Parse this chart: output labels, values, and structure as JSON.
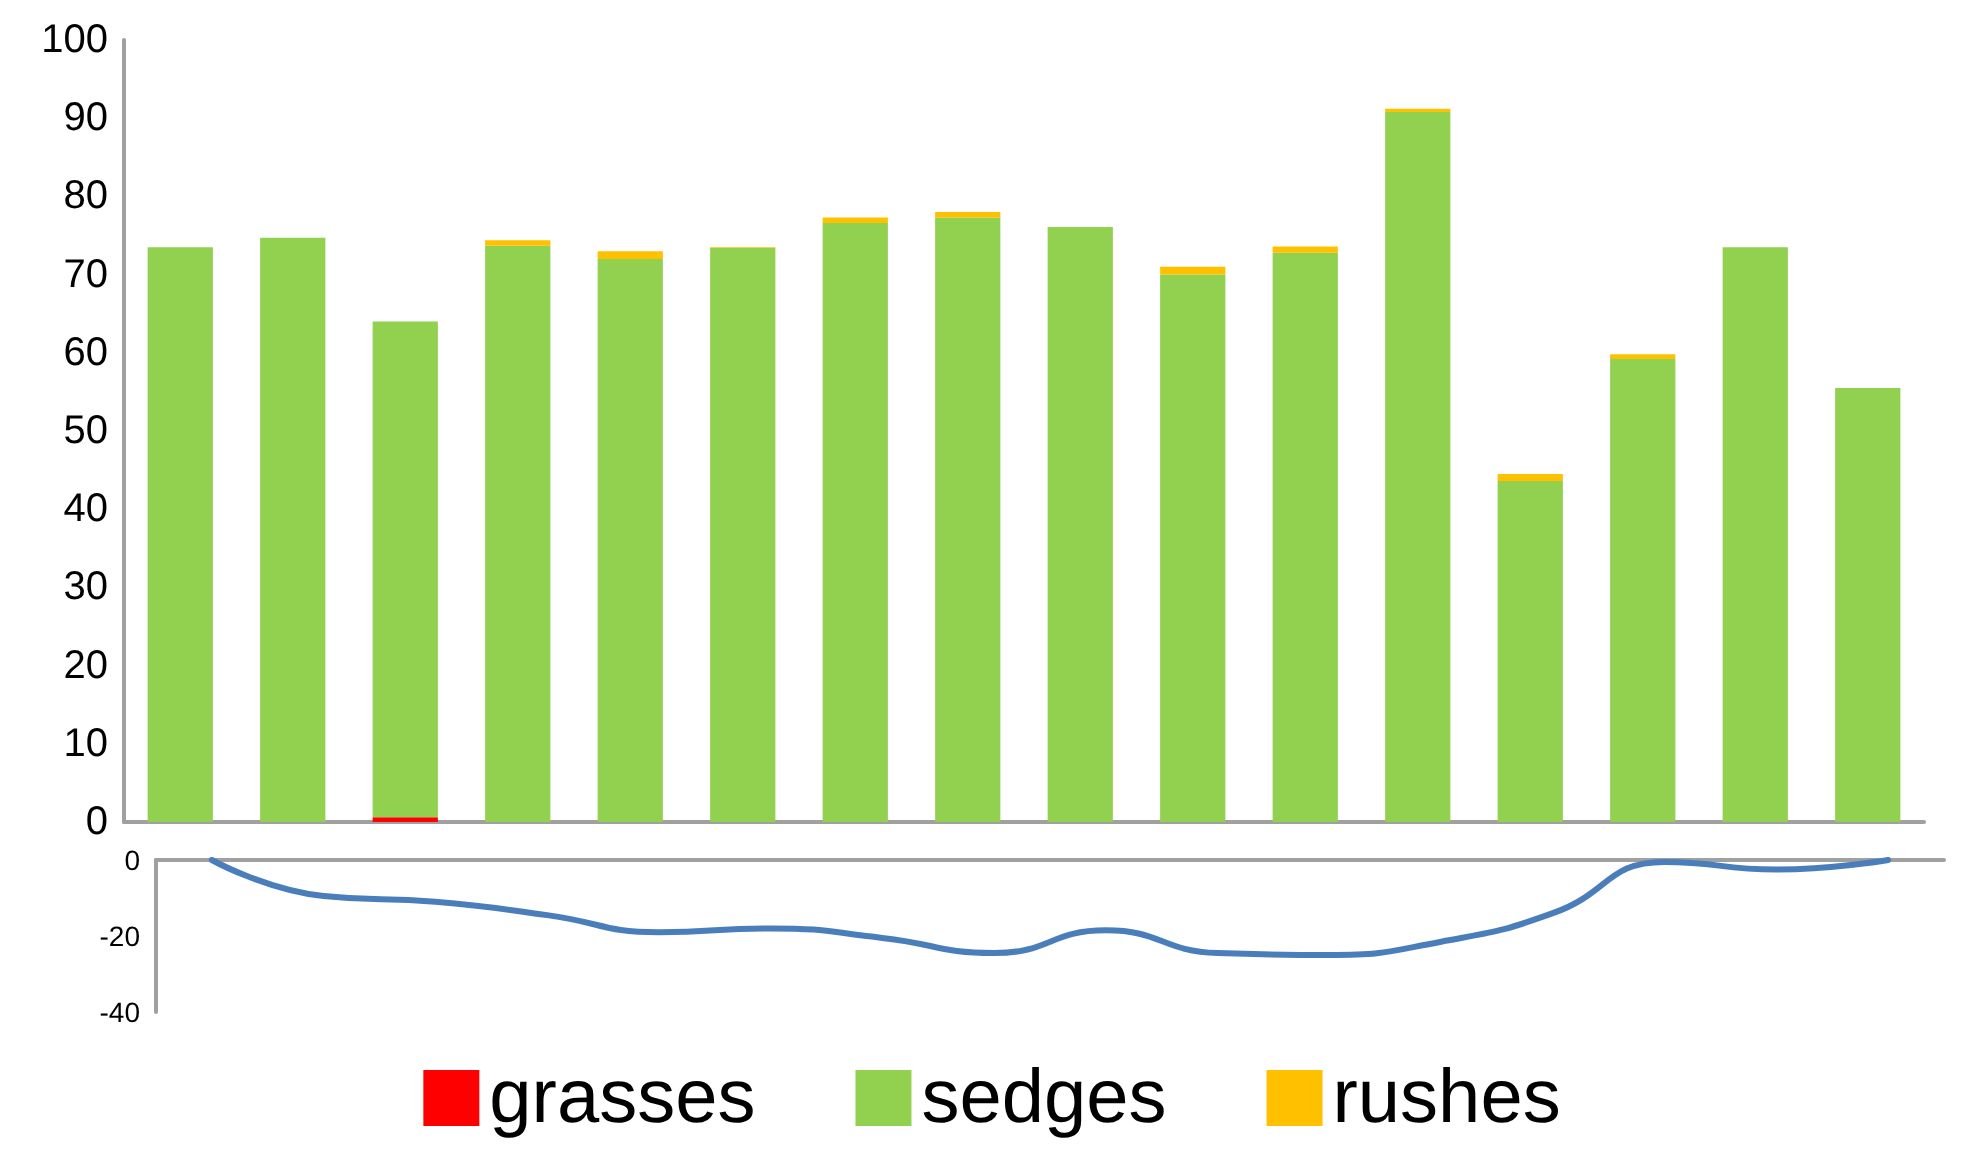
{
  "chart_data": [
    {
      "type": "bar",
      "stacked": true,
      "categories": [
        null,
        null,
        null,
        null,
        null,
        null,
        null,
        null,
        null,
        null,
        null,
        null,
        null,
        null,
        null,
        null
      ],
      "ylim": [
        0,
        100
      ],
      "yticks": [
        0,
        10,
        20,
        30,
        40,
        50,
        60,
        70,
        80,
        90,
        100
      ],
      "grid": false,
      "legend": "bottom",
      "tick_labels": "y",
      "series": [
        {
          "name": "grasses",
          "color": "#ff0000",
          "values": [
            0,
            0,
            0.6,
            0,
            0,
            0,
            0,
            0,
            0,
            0,
            0,
            0,
            0,
            0,
            0,
            0
          ]
        },
        {
          "name": "sedges",
          "color": "#92d050",
          "values": [
            73.5,
            74.7,
            63.4,
            73.7,
            72,
            73.4,
            76.6,
            77.3,
            76.1,
            70,
            72.8,
            90.8,
            43.6,
            59.2,
            73.5,
            55.5
          ]
        },
        {
          "name": "rushes",
          "color": "#ffc000",
          "values": [
            0,
            0,
            0,
            0.7,
            1,
            0.1,
            0.7,
            0.7,
            0,
            1,
            0.8,
            0.4,
            0.9,
            0.6,
            0,
            0
          ]
        }
      ]
    },
    {
      "type": "line",
      "categories": [
        null,
        null,
        null,
        null,
        null,
        null,
        null,
        null,
        null,
        null,
        null,
        null,
        null,
        null,
        null,
        null
      ],
      "ylim": [
        -40,
        0
      ],
      "yticks": [
        -40,
        -20,
        0
      ],
      "grid": false,
      "legend": false,
      "tick_labels": "y",
      "marker": "none",
      "line_style": "solid",
      "series": [
        {
          "color": "#4a7ebb",
          "values": [
            0,
            -9.5,
            -11,
            -14.5,
            -19,
            -18,
            -20.5,
            -24.5,
            -18.5,
            -24.5,
            -25,
            -21.5,
            -14,
            -0.5,
            -2.5,
            0
          ]
        }
      ]
    }
  ]
}
